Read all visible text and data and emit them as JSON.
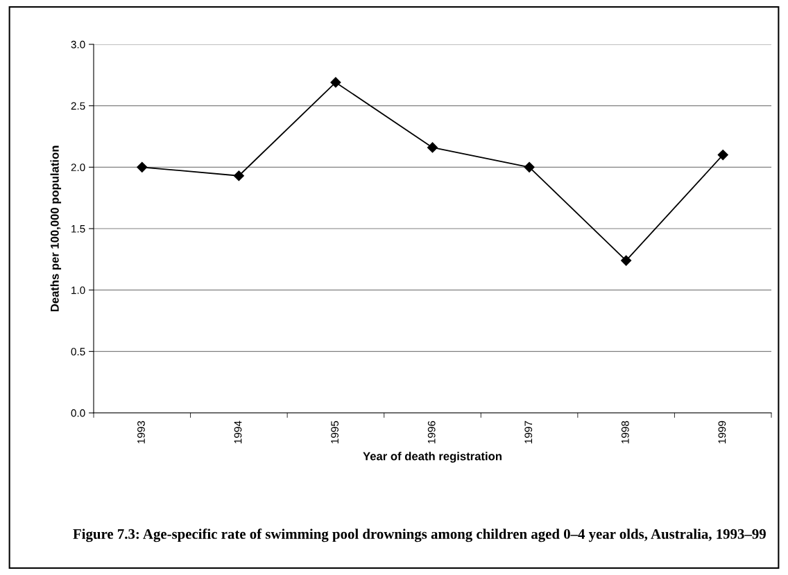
{
  "chart_data": {
    "type": "line",
    "xlabel": "Year of death registration",
    "ylabel": "Deaths per 100,000 population",
    "categories": [
      "1993",
      "1994",
      "1995",
      "1996",
      "1997",
      "1998",
      "1999"
    ],
    "series": [
      {
        "color": "#000000",
        "values": [
          2.0,
          1.93,
          2.69,
          2.16,
          2.0,
          1.24,
          2.1
        ]
      }
    ],
    "ylim": [
      0,
      3
    ],
    "yticks": [
      {
        "value": 0,
        "label": "0.0"
      },
      {
        "value": 0.5,
        "label": "0.5"
      },
      {
        "value": 1,
        "label": "1.0"
      },
      {
        "value": 1.5,
        "label": "1.5"
      },
      {
        "value": 2,
        "label": "2.0"
      },
      {
        "value": 2.5,
        "label": "2.5"
      },
      {
        "value": 3,
        "label": "3.0"
      }
    ],
    "grid": "y",
    "marker": "diamond",
    "line_style": "solid",
    "annotations": [
      "Figure 7.3: Age-specific rate of swimming pool drownings among children aged 0–4 year olds, Australia, 1993–99"
    ]
  }
}
